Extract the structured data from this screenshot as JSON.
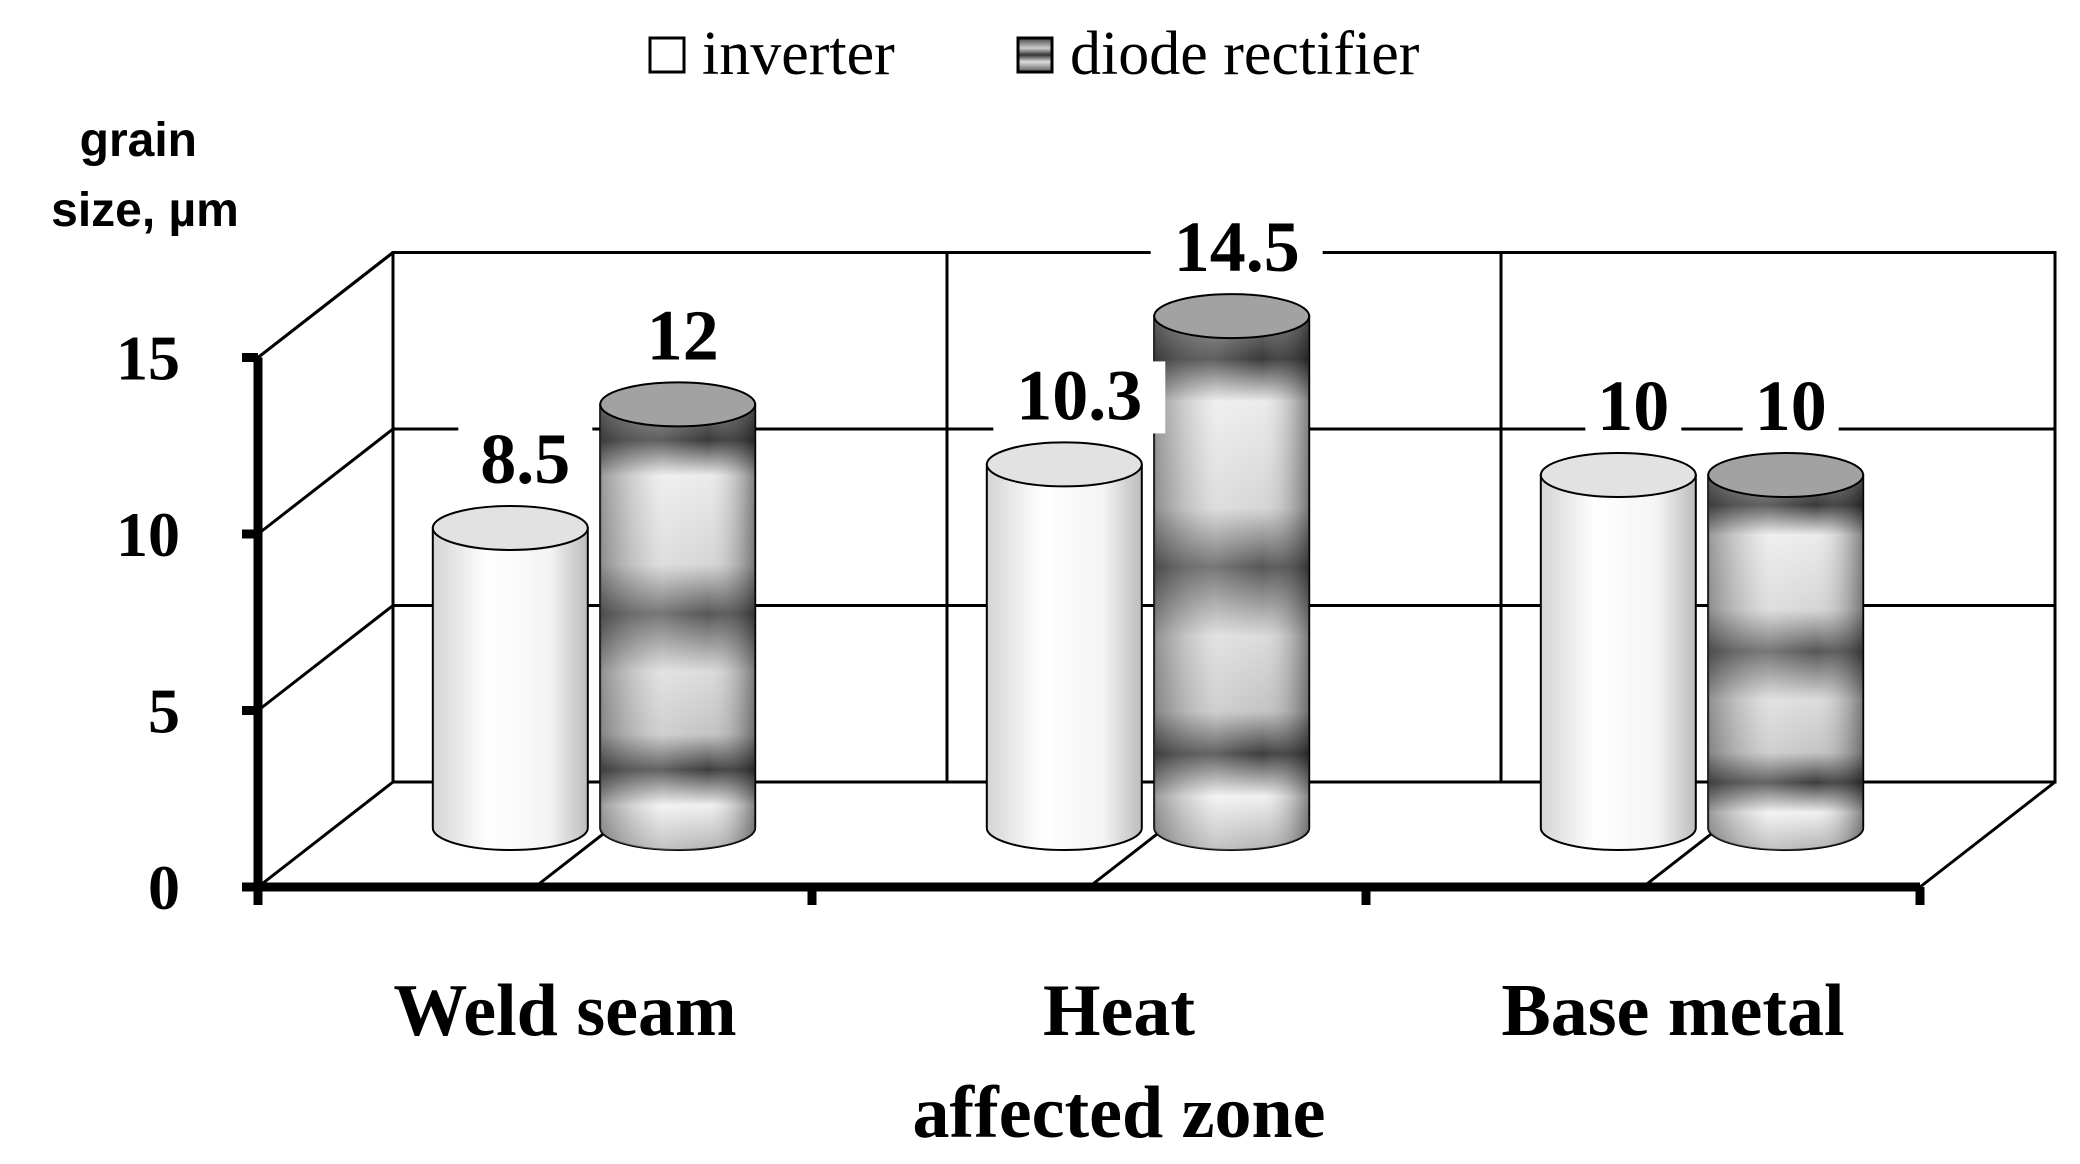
{
  "chart_data": {
    "type": "bar",
    "style": "3d-cylinder",
    "title": "",
    "ylabel": "grain size, µm",
    "xlabel": "",
    "ylim": [
      0,
      15
    ],
    "yticks": [
      0,
      5,
      10,
      15
    ],
    "grid": true,
    "legend_position": "top-center",
    "categories": [
      "Weld seam",
      "Heat affected zone",
      "Base metal"
    ],
    "category_lines": [
      [
        "Weld seam"
      ],
      [
        "Heat",
        "affected zone"
      ],
      [
        "Base metal"
      ]
    ],
    "series": [
      {
        "name": "inverter",
        "values": [
          8.5,
          10.3,
          10
        ],
        "labels": [
          "8.5",
          "10.3",
          "10"
        ],
        "color": "#f2f2f2"
      },
      {
        "name": "diode rectifier",
        "values": [
          12,
          14.5,
          10
        ],
        "labels": [
          "12",
          "14.5",
          "10"
        ],
        "color": "#8a8a8a"
      }
    ]
  }
}
